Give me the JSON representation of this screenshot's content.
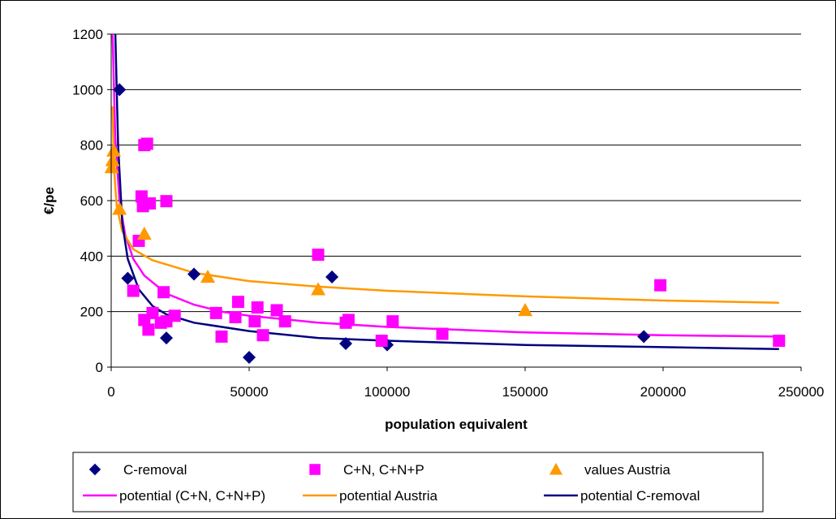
{
  "chart_data": {
    "type": "scatter",
    "xlabel": "population equivalent",
    "ylabel": "€/pe",
    "xlim": [
      0,
      250000
    ],
    "ylim": [
      0,
      1200
    ],
    "x_ticks": [
      0,
      50000,
      100000,
      150000,
      200000,
      250000
    ],
    "x_tick_labels": [
      "0",
      "50000",
      "100000",
      "150000",
      "200000",
      "250000"
    ],
    "y_ticks": [
      0,
      200,
      400,
      600,
      800,
      1000,
      1200
    ],
    "y_tick_labels": [
      "0",
      "200",
      "400",
      "600",
      "800",
      "1000",
      "1200"
    ],
    "grid": "horizontal major gridlines",
    "legend_position": "bottom",
    "scatter_series": [
      {
        "name": "C-removal",
        "marker": "diamond",
        "color": "#000080",
        "points": [
          [
            3000,
            1000
          ],
          [
            6000,
            320
          ],
          [
            20000,
            105
          ],
          [
            30000,
            335
          ],
          [
            50000,
            35
          ],
          [
            80000,
            325
          ],
          [
            85000,
            85
          ],
          [
            100000,
            80
          ],
          [
            193000,
            110
          ]
        ]
      },
      {
        "name": "C+N, C+N+P",
        "marker": "square",
        "color": "#FF00FF",
        "points": [
          [
            8000,
            275
          ],
          [
            10000,
            455
          ],
          [
            11000,
            615
          ],
          [
            11500,
            580
          ],
          [
            12000,
            800
          ],
          [
            12000,
            170
          ],
          [
            13000,
            805
          ],
          [
            13500,
            135
          ],
          [
            14000,
            590
          ],
          [
            15000,
            195
          ],
          [
            18000,
            160
          ],
          [
            19000,
            270
          ],
          [
            20000,
            598
          ],
          [
            20000,
            165
          ],
          [
            23000,
            185
          ],
          [
            38000,
            195
          ],
          [
            40000,
            110
          ],
          [
            45000,
            180
          ],
          [
            46000,
            235
          ],
          [
            53000,
            215
          ],
          [
            52000,
            165
          ],
          [
            55000,
            115
          ],
          [
            60000,
            205
          ],
          [
            63000,
            165
          ],
          [
            75000,
            405
          ],
          [
            85000,
            160
          ],
          [
            86000,
            170
          ],
          [
            98000,
            95
          ],
          [
            102000,
            165
          ],
          [
            120000,
            120
          ],
          [
            199000,
            295
          ],
          [
            242000,
            95
          ]
        ]
      },
      {
        "name": "values Austria",
        "marker": "triangle",
        "color": "#FF9900",
        "points": [
          [
            200,
            720
          ],
          [
            500,
            745
          ],
          [
            900,
            780
          ],
          [
            3000,
            570
          ],
          [
            12000,
            480
          ],
          [
            35000,
            325
          ],
          [
            75000,
            280
          ],
          [
            150000,
            205
          ]
        ]
      }
    ],
    "trend_series": [
      {
        "name": "potential (C+N, C+N+P)",
        "color": "#FF00FF",
        "points": [
          [
            500,
            1200
          ],
          [
            1500,
            820
          ],
          [
            3000,
            600
          ],
          [
            5000,
            480
          ],
          [
            8000,
            390
          ],
          [
            12000,
            330
          ],
          [
            20000,
            265
          ],
          [
            30000,
            225
          ],
          [
            40000,
            200
          ],
          [
            50000,
            185
          ],
          [
            75000,
            160
          ],
          [
            100000,
            145
          ],
          [
            150000,
            125
          ],
          [
            200000,
            115
          ],
          [
            242000,
            110
          ]
        ]
      },
      {
        "name": "potential Austria",
        "color": "#FF9900",
        "points": [
          [
            500,
            940
          ],
          [
            1000,
            720
          ],
          [
            2000,
            580
          ],
          [
            4000,
            490
          ],
          [
            8000,
            425
          ],
          [
            15000,
            385
          ],
          [
            30000,
            340
          ],
          [
            50000,
            310
          ],
          [
            75000,
            290
          ],
          [
            100000,
            275
          ],
          [
            150000,
            255
          ],
          [
            200000,
            240
          ],
          [
            242000,
            232
          ]
        ]
      },
      {
        "name": "potential C-removal",
        "color": "#000080",
        "points": [
          [
            1500,
            1200
          ],
          [
            2500,
            800
          ],
          [
            4000,
            520
          ],
          [
            6000,
            390
          ],
          [
            10000,
            280
          ],
          [
            15000,
            220
          ],
          [
            20000,
            190
          ],
          [
            30000,
            160
          ],
          [
            50000,
            130
          ],
          [
            75000,
            105
          ],
          [
            100000,
            95
          ],
          [
            150000,
            80
          ],
          [
            200000,
            72
          ],
          [
            242000,
            65
          ]
        ]
      }
    ],
    "legend": [
      {
        "label": "C-removal",
        "kind": "diamond",
        "color": "#000080"
      },
      {
        "label": "C+N, C+N+P",
        "kind": "square",
        "color": "#FF00FF"
      },
      {
        "label": "values Austria",
        "kind": "triangle",
        "color": "#FF9900"
      },
      {
        "label": "potential (C+N, C+N+P)",
        "kind": "line",
        "color": "#FF00FF"
      },
      {
        "label": "potential Austria",
        "kind": "line",
        "color": "#FF9900"
      },
      {
        "label": "potential C-removal",
        "kind": "line",
        "color": "#000080"
      }
    ]
  }
}
